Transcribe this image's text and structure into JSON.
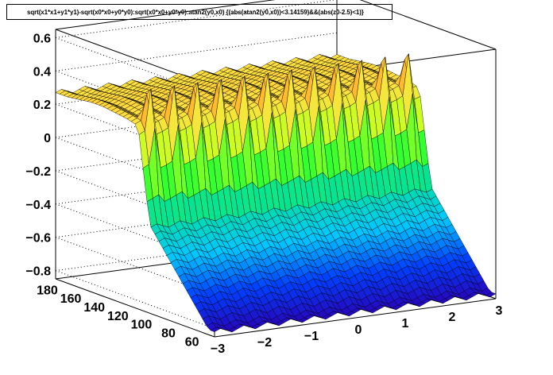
{
  "chart_data": {
    "type": "surface",
    "title": "sqrt(x1*x1+y1*y1)-sqrt(x0*x0+y0*y0):sqrt(x0*x0+y0*y0):atan2(y0,x0) {(abs(atan2(y0,x0))<3.14159)&&(abs(z0-2.5)<1)}",
    "x_axis": {
      "range": [
        -3,
        3
      ],
      "ticks": [
        "−3",
        "−2",
        "−1",
        "0",
        "1",
        "2",
        "3"
      ],
      "ticks_values": [
        -3,
        -2,
        -1,
        0,
        1,
        2,
        3
      ]
    },
    "y_axis": {
      "range": [
        55,
        190
      ],
      "ticks": [
        "60",
        "80",
        "100",
        "120",
        "140",
        "160",
        "180"
      ],
      "ticks_values": [
        60,
        80,
        100,
        120,
        140,
        160,
        180
      ]
    },
    "z_axis": {
      "range": [
        -0.85,
        0.65
      ],
      "ticks": [
        "0.6",
        "0.4",
        "0.2",
        "0",
        "−0.2",
        "−0.4",
        "−0.6",
        "−0.8"
      ],
      "ticks_values": [
        0.6,
        0.4,
        0.2,
        0,
        -0.2,
        -0.4,
        -0.6,
        -0.8
      ]
    },
    "grid": true,
    "colormap": [
      "#2a00b8",
      "#0040ff",
      "#00c8ff",
      "#00e0a0",
      "#30ff30",
      "#c8ff20",
      "#ffe040",
      "#ff7a10",
      "#ff2a00"
    ],
    "surface": {
      "description_of_shape": "Low values (about -0.8) near y=60 rising with y; plateau around 0.2-0.3 for y above ~120; sharp peaks near 0.5 along x at regular intervals.",
      "y_samples": [
        60,
        70,
        80,
        90,
        100,
        110,
        120,
        130,
        140,
        150,
        160,
        170,
        180
      ],
      "z_profile": [
        -0.82,
        -0.72,
        -0.62,
        -0.52,
        -0.42,
        -0.32,
        0.25,
        0.27,
        0.28,
        0.29,
        0.29,
        0.28,
        0.27
      ],
      "peak_height": 0.5,
      "peaks_per_unit_x": 2
    }
  }
}
